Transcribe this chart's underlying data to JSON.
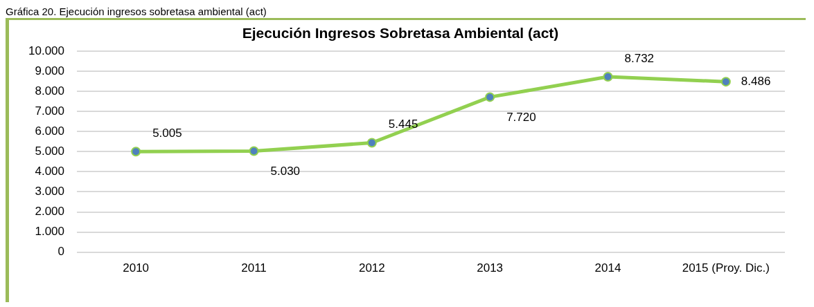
{
  "chart_data": {
    "type": "line",
    "title": "Ejecución Ingresos Sobretasa Ambiental (act)",
    "annotations": [
      "Gráfica 20. Ejecución ingresos sobretasa ambiental (act)"
    ],
    "categories": [
      "2010",
      "2011",
      "2012",
      "2013",
      "2014",
      "2015 (Proy. Dic.)"
    ],
    "series": [
      {
        "color": "#92d050",
        "values": [
          5005,
          5030,
          5445,
          7720,
          8732,
          8486
        ],
        "value_labels": [
          "5.005",
          "5.030",
          "5.445",
          "7.720",
          "8.732",
          "8.486"
        ]
      }
    ],
    "ylim": [
      0,
      10000
    ],
    "yticks": [
      {
        "value": 0,
        "label": "0"
      },
      {
        "value": 1000,
        "label": "1.000"
      },
      {
        "value": 2000,
        "label": "2.000"
      },
      {
        "value": 3000,
        "label": "3.000"
      },
      {
        "value": 4000,
        "label": "4.000"
      },
      {
        "value": 5000,
        "label": "5.000"
      },
      {
        "value": 6000,
        "label": "6.000"
      },
      {
        "value": 7000,
        "label": "7.000"
      },
      {
        "value": 8000,
        "label": "8.000"
      },
      {
        "value": 9000,
        "label": "9.000"
      },
      {
        "value": 10000,
        "label": "10.000"
      }
    ],
    "grid": "y",
    "legend": false,
    "marker": "circle",
    "line_style": "solid"
  }
}
